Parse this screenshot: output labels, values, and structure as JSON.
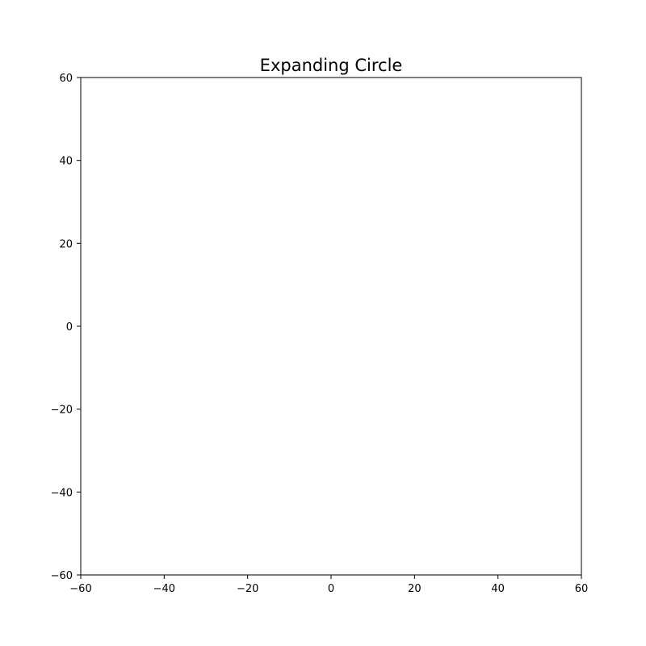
{
  "chart_data": {
    "type": "scatter",
    "title": "Expanding Circle",
    "xlabel": "",
    "ylabel": "",
    "xlim": [
      -60,
      60
    ],
    "ylim": [
      -60,
      60
    ],
    "xticks": [
      -60,
      -40,
      -20,
      0,
      20,
      40,
      60
    ],
    "yticks": [
      -60,
      -40,
      -20,
      0,
      20,
      40,
      60
    ],
    "xtick_labels": [
      "−60",
      "−40",
      "−20",
      "0",
      "20",
      "40",
      "60"
    ],
    "ytick_labels": [
      "−60",
      "−40",
      "−20",
      "0",
      "20",
      "40",
      "60"
    ],
    "grid": false,
    "series": []
  },
  "colors": {
    "background": "#ffffff",
    "axes": "#000000"
  }
}
